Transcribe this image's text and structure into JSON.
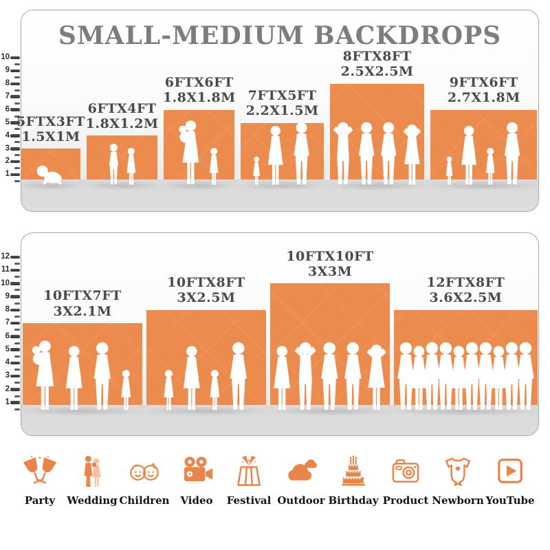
{
  "title": "SMALL-MEDIUM BACKDROPS",
  "colors": {
    "backdrop_orange": "#EC8B4E",
    "icon_orange": "#E8854A",
    "title_gray": "#7D7D7D",
    "label_gray": "#4A4A4A",
    "floor_gray": "#D9D9D9"
  },
  "chart_data": [
    {
      "type": "bar",
      "panel": "small-medium-top",
      "ruler_max": 10,
      "ruler_ticks": [
        1,
        2,
        3,
        4,
        5,
        6,
        7,
        8,
        9,
        10
      ],
      "items": [
        {
          "size_ft": "5FTX3FT",
          "size_m": "1.5X1M",
          "width_ft": 5,
          "height_ft": 3,
          "figures": [
            "crawling-baby"
          ]
        },
        {
          "size_ft": "6FTX4FT",
          "size_m": "1.8X1.2M",
          "width_ft": 6,
          "height_ft": 4,
          "figures": [
            "boy",
            "girl"
          ]
        },
        {
          "size_ft": "6FTX6FT",
          "size_m": "1.8X1.8M",
          "width_ft": 6,
          "height_ft": 6,
          "figures": [
            "woman-holding-baby",
            "girl"
          ]
        },
        {
          "size_ft": "7FTX5FT",
          "size_m": "2.2X1.5M",
          "width_ft": 7,
          "height_ft": 5,
          "figures": [
            "toddler",
            "woman",
            "man"
          ]
        },
        {
          "size_ft": "8FTX8FT",
          "size_m": "2.5X2.5M",
          "width_ft": 8,
          "height_ft": 8,
          "figures": [
            "man-arms-up",
            "man",
            "man",
            "woman-arms-up"
          ]
        },
        {
          "size_ft": "9FTX6FT",
          "size_m": "2.7X1.8M",
          "width_ft": 9,
          "height_ft": 6,
          "figures": [
            "toddler",
            "woman",
            "girl",
            "man"
          ]
        }
      ]
    },
    {
      "type": "bar",
      "panel": "medium-bottom",
      "ruler_max": 12,
      "ruler_ticks": [
        1,
        2,
        3,
        4,
        5,
        6,
        7,
        8,
        9,
        10,
        11,
        12
      ],
      "items": [
        {
          "size_ft": "10FTX7FT",
          "size_m": "3X2.1M",
          "width_ft": 10,
          "height_ft": 7,
          "figures": [
            "woman-holding-baby",
            "woman",
            "man",
            "girl"
          ]
        },
        {
          "size_ft": "10FTX8FT",
          "size_m": "3X2.5M",
          "width_ft": 10,
          "height_ft": 8,
          "figures": [
            "girl",
            "woman",
            "girl",
            "man"
          ]
        },
        {
          "size_ft": "10FTX10FT",
          "size_m": "3X3M",
          "width_ft": 10,
          "height_ft": 10,
          "figures": [
            "woman",
            "man-arms-up",
            "man",
            "man",
            "woman-arms-up"
          ]
        },
        {
          "size_ft": "12FTX8FT",
          "size_m": "3.6X2.5M",
          "width_ft": 12,
          "height_ft": 8,
          "figures": [
            "man",
            "woman",
            "man",
            "man",
            "woman",
            "man",
            "man",
            "woman",
            "man",
            "man"
          ]
        }
      ]
    }
  ],
  "categories": [
    {
      "label": "Party",
      "icon": "party-icon"
    },
    {
      "label": "Wedding",
      "icon": "wedding-icon"
    },
    {
      "label": "Children",
      "icon": "children-icon"
    },
    {
      "label": "Video",
      "icon": "video-icon"
    },
    {
      "label": "Festival",
      "icon": "festival-icon"
    },
    {
      "label": "Outdoor",
      "icon": "outdoor-icon"
    },
    {
      "label": "Birthday",
      "icon": "birthday-icon"
    },
    {
      "label": "Product",
      "icon": "product-icon"
    },
    {
      "label": "Newborn",
      "icon": "newborn-icon"
    },
    {
      "label": "YouTube",
      "icon": "youtube-icon"
    }
  ]
}
